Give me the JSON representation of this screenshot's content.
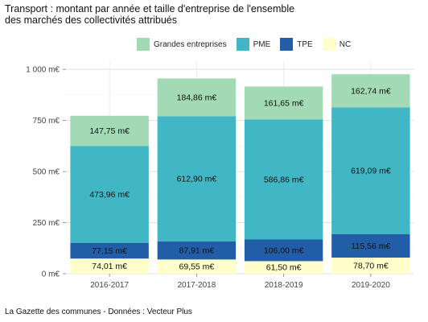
{
  "chart_data": {
    "type": "bar",
    "stacked": true,
    "title_line1": "Transport : montant par année et taille d'entreprise de l'ensemble",
    "title_line2": "des marchés des collectivités attribués",
    "categories": [
      "2016-2017",
      "2017-2018",
      "2018-2019",
      "2019-2020"
    ],
    "series": [
      {
        "name": "NC",
        "color": "#ffffcc",
        "values": [
          74.01,
          69.55,
          61.5,
          78.7
        ],
        "labels": [
          "74,01 m€",
          "69,55 m€",
          "61,50 m€",
          "78,70 m€"
        ]
      },
      {
        "name": "TPE",
        "color": "#225ea8",
        "values": [
          77.15,
          87.91,
          106.0,
          115.56
        ],
        "labels": [
          "77,15 m€",
          "87,91 m€",
          "106,00 m€",
          "115,56 m€"
        ]
      },
      {
        "name": "PME",
        "color": "#41b6c4",
        "values": [
          473.96,
          612.9,
          586.86,
          619.09
        ],
        "labels": [
          "473,96 m€",
          "612,90 m€",
          "586,86 m€",
          "619,09 m€"
        ]
      },
      {
        "name": "Grandes entreprises",
        "color": "#a1dab4",
        "values": [
          147.75,
          184.86,
          161.65,
          162.74
        ],
        "labels": [
          "147,75 m€",
          "184,86 m€",
          "161,65 m€",
          "162,74 m€"
        ]
      }
    ],
    "legend_order": [
      "Grandes entreprises",
      "PME",
      "TPE",
      "NC"
    ],
    "ylim": [
      0,
      1040
    ],
    "yticks": [
      0,
      250,
      500,
      750,
      1000
    ],
    "ytick_labels": [
      "0 m€",
      "250 m€",
      "500 m€",
      "750 m€",
      "1 000 m€"
    ],
    "grid": true,
    "legend_position": "top"
  },
  "caption": "La Gazette des communes - Données : Vecteur Plus"
}
